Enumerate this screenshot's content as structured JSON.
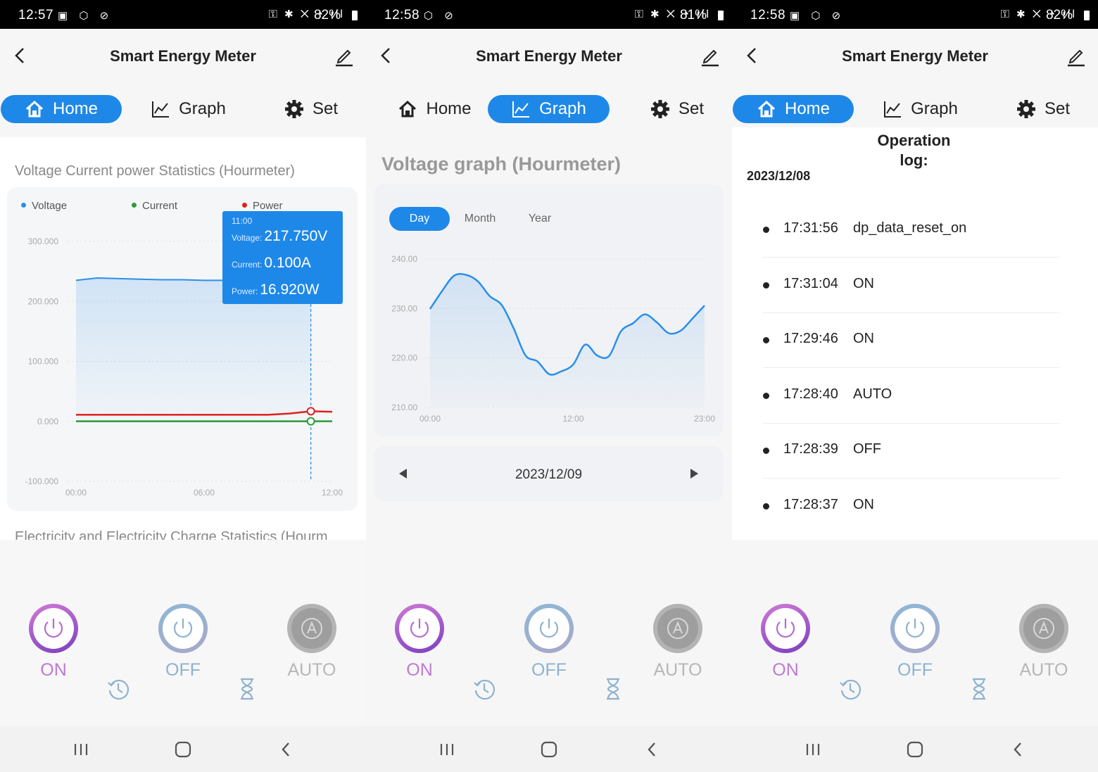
{
  "app": {
    "title": "Smart Energy Meter"
  },
  "tabs": {
    "home": "Home",
    "graph": "Graph",
    "set": "Set"
  },
  "screens": [
    {
      "time": "12:57",
      "battery": "82%"
    },
    {
      "time": "12:58",
      "battery": "81%"
    },
    {
      "time": "12:58",
      "battery": "82%"
    }
  ],
  "home": {
    "chart_title": "Voltage Current power Statistics (Hourmeter)",
    "next_section_title": "Electricity and Electricity Charge Statistics (Hourm",
    "tooltip": {
      "time": "11:00",
      "voltage_label": "Voltage:",
      "voltage": "217.750V",
      "current_label": "Current:",
      "current": "0.100A",
      "power_label": "Power:",
      "power": "16.920W"
    }
  },
  "graph": {
    "title": "Voltage graph (Hourmeter)",
    "periods": [
      "Day",
      "Month",
      "Year"
    ],
    "date": "2023/12/09"
  },
  "log": {
    "title_line1": "Operation",
    "title_line2": "log:",
    "date": "2023/12/08",
    "entries": [
      {
        "time": "17:31:56",
        "value": "dp_data_reset_on"
      },
      {
        "time": "17:31:04",
        "value": "ON"
      },
      {
        "time": "17:29:46",
        "value": "ON"
      },
      {
        "time": "17:28:40",
        "value": "AUTO"
      },
      {
        "time": "17:28:39",
        "value": "OFF"
      },
      {
        "time": "17:28:37",
        "value": "ON"
      }
    ]
  },
  "controls": {
    "on": "ON",
    "off": "OFF",
    "auto": "AUTO"
  },
  "colors": {
    "accent": "#1e88e8",
    "voltage": "#2a8fea",
    "current": "#2e9a3a",
    "power": "#e02020"
  },
  "chart_data": [
    {
      "type": "line",
      "title": "Voltage Current power Statistics (Hourmeter)",
      "ytick_labels": [
        "300.000",
        "200.000",
        "100.000",
        "0.000",
        "-100.000"
      ],
      "xtick_labels": [
        "00:00",
        "06:00",
        "12:00"
      ],
      "ylim": [
        -100,
        300
      ],
      "legend_position": "top",
      "series": [
        {
          "name": "Voltage",
          "x": [
            0,
            1,
            2,
            3,
            4,
            5,
            6,
            7,
            8,
            9,
            10,
            11
          ],
          "values": [
            235,
            239,
            238,
            237,
            236,
            236,
            235,
            235,
            234,
            234,
            234,
            217.75
          ]
        },
        {
          "name": "Current",
          "x": [
            0,
            1,
            2,
            3,
            4,
            5,
            6,
            7,
            8,
            9,
            10,
            11,
            12
          ],
          "values": [
            0.1,
            0.1,
            0.1,
            0.1,
            0.1,
            0.1,
            0.1,
            0.1,
            0.1,
            0.1,
            0.1,
            0.1,
            0.1
          ]
        },
        {
          "name": "Power",
          "x": [
            0,
            1,
            2,
            3,
            4,
            5,
            6,
            7,
            8,
            9,
            10,
            11,
            12
          ],
          "values": [
            11,
            11,
            11,
            11,
            11,
            11,
            11,
            11,
            11,
            11,
            13,
            16.92,
            16
          ]
        }
      ]
    },
    {
      "type": "area",
      "title": "Voltage graph (Hourmeter)",
      "ytick_labels": [
        "240.00",
        "230.00",
        "220.00",
        "210.00"
      ],
      "xtick_labels": [
        "00:00",
        "12:00",
        "23:00"
      ],
      "ylim": [
        210,
        240
      ],
      "x": [
        0,
        1,
        2,
        3,
        4,
        5,
        6,
        7,
        8,
        9,
        10,
        11,
        12,
        13,
        14,
        15,
        16,
        17,
        18,
        19,
        20,
        21,
        22,
        23
      ],
      "values": [
        229.9,
        233.5,
        236.6,
        236.8,
        235.5,
        232.5,
        230.7,
        226,
        220.5,
        219.3,
        216.7,
        217.3,
        218.7,
        222.7,
        220.5,
        220.4,
        225.4,
        227,
        228.8,
        227.2,
        225,
        225.5,
        228,
        230.6
      ]
    }
  ]
}
